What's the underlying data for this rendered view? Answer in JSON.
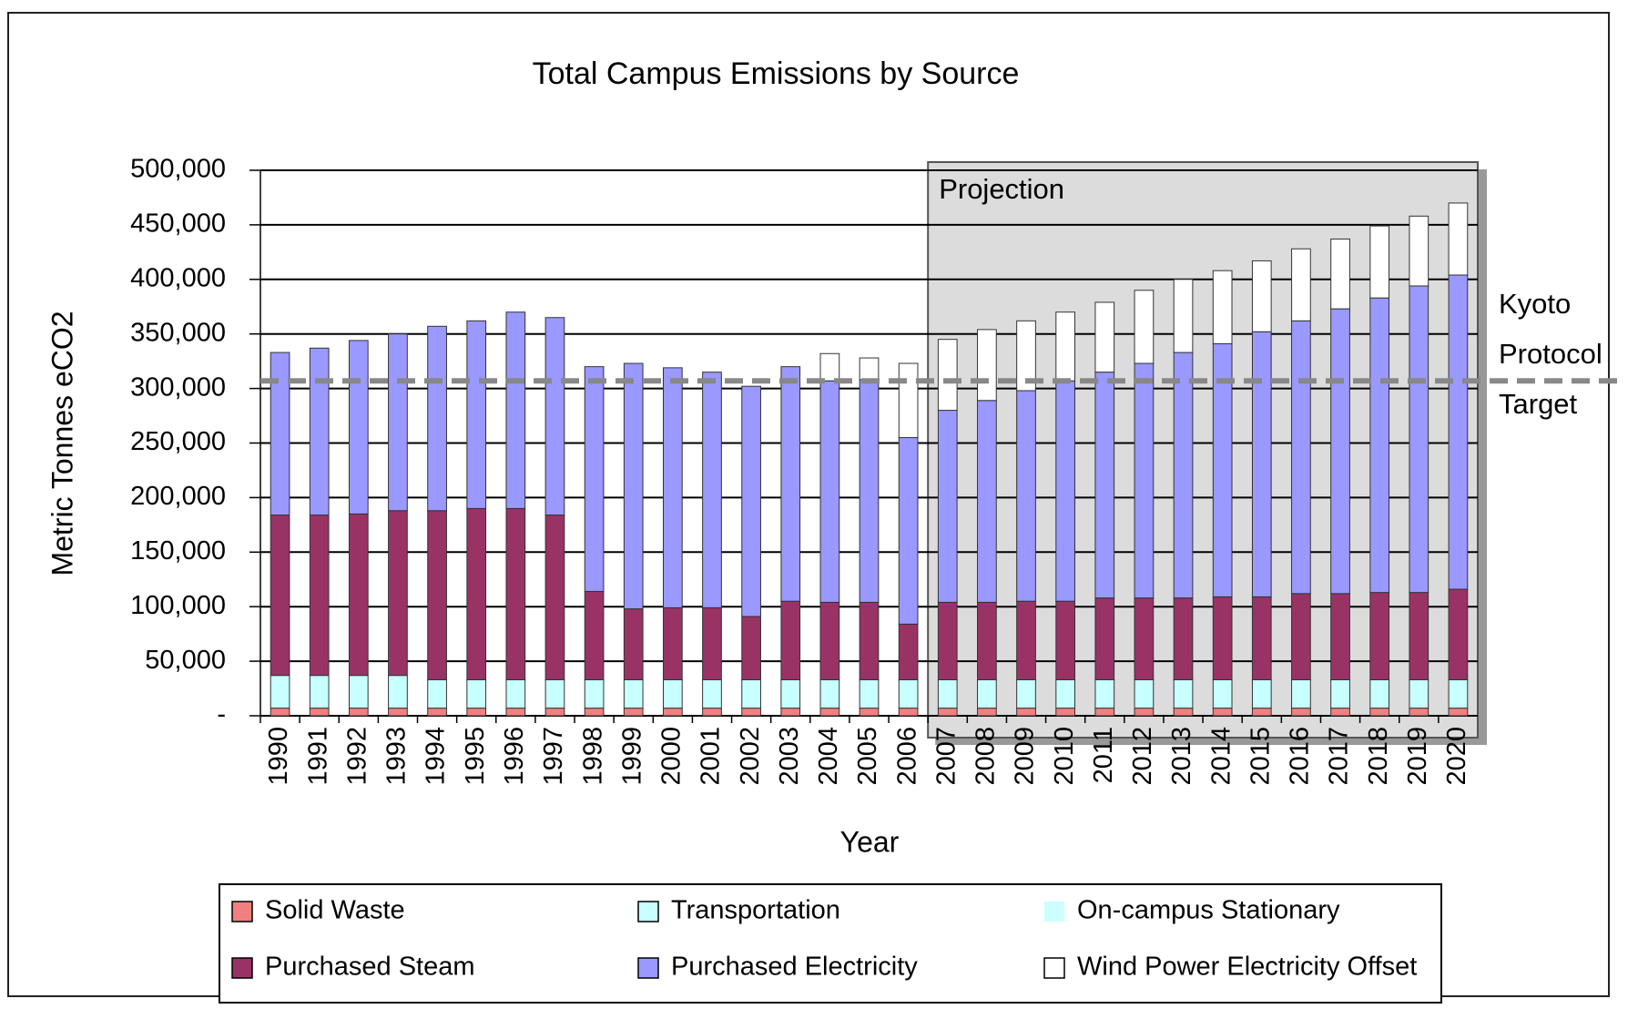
{
  "chart_data": {
    "type": "stacked_bar",
    "title": "Total Campus Emissions by Source",
    "x_label": "Year",
    "y_label": "Metric Tonnes eCO2",
    "categories": [
      "1990",
      "1991",
      "1992",
      "1993",
      "1994",
      "1995",
      "1996",
      "1997",
      "1998",
      "1999",
      "2000",
      "2001",
      "2002",
      "2003",
      "2004",
      "2005",
      "2006",
      "2007",
      "2008",
      "2009",
      "2010",
      "2011",
      "2012",
      "2013",
      "2014",
      "2015",
      "2016",
      "2017",
      "2018",
      "2019",
      "2020"
    ],
    "series": [
      {
        "name": "Solid Waste",
        "color": "#f08080",
        "values": [
          7000,
          7000,
          7000,
          7000,
          7000,
          7000,
          7000,
          7000,
          7000,
          7000,
          7000,
          7000,
          7000,
          7000,
          7000,
          7000,
          7000,
          7000,
          7000,
          7000,
          7000,
          7000,
          7000,
          7000,
          7000,
          7000,
          7000,
          7000,
          7000,
          7000,
          7000
        ]
      },
      {
        "name": "Transportation",
        "color": "#c8ffff",
        "values": [
          30000,
          30000,
          30000,
          30000,
          26000,
          26000,
          26000,
          26000,
          26000,
          26000,
          26000,
          26000,
          26000,
          26000,
          26000,
          26000,
          26000,
          26000,
          26000,
          26000,
          26000,
          26000,
          26000,
          26000,
          26000,
          26000,
          26000,
          26000,
          26000,
          26000,
          26000
        ]
      },
      {
        "name": "On-campus Stationary",
        "color": "#ccffff",
        "values": [
          0,
          0,
          0,
          0,
          0,
          0,
          0,
          0,
          0,
          0,
          0,
          0,
          0,
          0,
          0,
          0,
          0,
          0,
          0,
          0,
          0,
          0,
          0,
          0,
          0,
          0,
          0,
          0,
          0,
          0,
          0
        ]
      },
      {
        "name": "Purchased Steam",
        "color": "#993366",
        "values": [
          147000,
          147000,
          148000,
          151000,
          155000,
          157000,
          157000,
          151000,
          81000,
          65000,
          66000,
          66000,
          58000,
          72000,
          71000,
          71000,
          51000,
          71000,
          71000,
          72000,
          72000,
          75000,
          75000,
          75000,
          76000,
          76000,
          79000,
          79000,
          80000,
          80000,
          83000
        ]
      },
      {
        "name": "Purchased Electricity",
        "color": "#9999ff",
        "values": [
          149000,
          153000,
          159000,
          162000,
          169000,
          172000,
          180000,
          181000,
          206000,
          225000,
          220000,
          216000,
          211000,
          215000,
          203000,
          204000,
          171000,
          176000,
          185000,
          193000,
          202000,
          207000,
          215000,
          225000,
          232000,
          243000,
          250000,
          261000,
          270000,
          281000,
          288000
        ]
      },
      {
        "name": "Wind Power Electricity Offset",
        "color": "#ffffff",
        "values": [
          0,
          0,
          0,
          0,
          0,
          0,
          0,
          0,
          0,
          0,
          0,
          0,
          0,
          0,
          25000,
          20000,
          68000,
          65000,
          65000,
          64000,
          63000,
          64000,
          67000,
          67000,
          67000,
          65000,
          66000,
          64000,
          66000,
          64000,
          66000
        ]
      }
    ],
    "ylim": [
      0,
      500000
    ],
    "yticks": [
      {
        "value": 0,
        "label": "-"
      },
      {
        "value": 50000,
        "label": "50,000"
      },
      {
        "value": 100000,
        "label": "100,000"
      },
      {
        "value": 150000,
        "label": "150,000"
      },
      {
        "value": 200000,
        "label": "200,000"
      },
      {
        "value": 250000,
        "label": "250,000"
      },
      {
        "value": 300000,
        "label": "300,000"
      },
      {
        "value": 350000,
        "label": "350,000"
      },
      {
        "value": 400000,
        "label": "400,000"
      },
      {
        "value": 450000,
        "label": "450,000"
      },
      {
        "value": 500000,
        "label": "500,000"
      }
    ],
    "grid": true,
    "projection_label": "Projection",
    "projection_from": "2007",
    "target_value": 307000,
    "target_label": [
      "Kyoto",
      "Protocol",
      "Target"
    ]
  }
}
